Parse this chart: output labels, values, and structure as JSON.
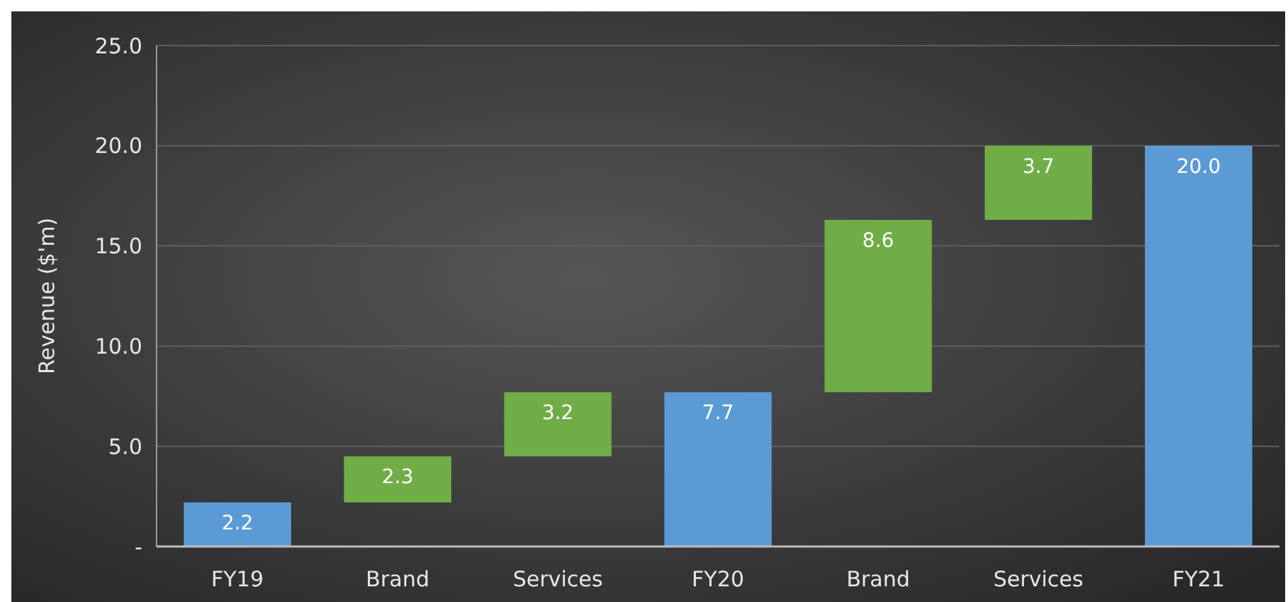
{
  "chart_data": {
    "type": "bar",
    "ylabel": "Revenue ($'m)",
    "categories": [
      "FY19",
      "Brand",
      "Services",
      "FY20",
      "Brand",
      "Services",
      "FY21"
    ],
    "values": [
      2.2,
      2.3,
      3.2,
      7.7,
      8.6,
      3.7,
      20.0
    ],
    "base": [
      0,
      2.2,
      4.5,
      0,
      7.7,
      16.3,
      0
    ],
    "colors": [
      "#5b9bd5",
      "#70ad47",
      "#70ad47",
      "#5b9bd5",
      "#70ad47",
      "#70ad47",
      "#5b9bd5"
    ],
    "value_labels": [
      "2.2",
      "2.3",
      "3.2",
      "7.7",
      "8.6",
      "3.7",
      "20.0"
    ],
    "ylim": [
      0,
      25
    ],
    "yticks": [
      {
        "value": 0,
        "label": "-"
      },
      {
        "value": 5,
        "label": "5.0"
      },
      {
        "value": 10,
        "label": "10.0"
      },
      {
        "value": 15,
        "label": "15.0"
      },
      {
        "value": 20,
        "label": "20.0"
      },
      {
        "value": 25,
        "label": "25.0"
      }
    ],
    "grid": "y"
  }
}
